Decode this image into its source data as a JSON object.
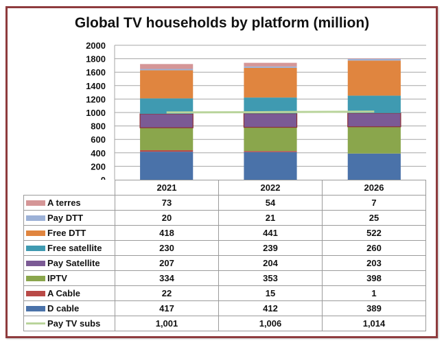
{
  "chart_data": {
    "type": "bar",
    "stacked": true,
    "title": "Global TV households by platform (million)",
    "xlabel": "",
    "ylabel": "",
    "ylim": [
      0,
      2000
    ],
    "yticks": [
      "0",
      "200",
      "400",
      "600",
      "800",
      "1000",
      "1200",
      "1400",
      "1600",
      "1800",
      "2000"
    ],
    "ytick_values": [
      0,
      200,
      400,
      600,
      800,
      1000,
      1200,
      1400,
      1600,
      1800,
      2000
    ],
    "grid": true,
    "legend": "data-table-left",
    "categories": [
      "2021",
      "2022",
      "2026"
    ],
    "series": [
      {
        "name": "D cable",
        "color": "#4a72a9",
        "values": [
          417,
          412,
          389
        ]
      },
      {
        "name": "A Cable",
        "color": "#b94a47",
        "values": [
          22,
          15,
          1
        ]
      },
      {
        "name": "IPTV",
        "color": "#8aa64c",
        "values": [
          334,
          353,
          398
        ]
      },
      {
        "name": "Pay Satellite",
        "color": "#7b5a95",
        "outline": "#8e2f35",
        "values": [
          207,
          204,
          203
        ]
      },
      {
        "name": "Free satellite",
        "color": "#3f9ab1",
        "values": [
          230,
          239,
          260
        ]
      },
      {
        "name": "Free DTT",
        "color": "#e0853f",
        "values": [
          418,
          441,
          522
        ]
      },
      {
        "name": "Pay DTT",
        "color": "#9cb1d7",
        "values": [
          20,
          21,
          25
        ]
      },
      {
        "name": "A terres",
        "color": "#d59697",
        "values": [
          73,
          54,
          7
        ]
      }
    ],
    "line_series": {
      "name": "Pay TV subs",
      "type": "line",
      "color": "#b9d49b",
      "values": [
        1001,
        1006,
        1014
      ]
    },
    "table": {
      "row_order": [
        "A terres",
        "Pay DTT",
        "Free DTT",
        "Free satellite",
        "Pay Satellite",
        "IPTV",
        "A Cable",
        "D cable",
        "Pay TV subs"
      ],
      "display_values": {
        "A terres": [
          "73",
          "54",
          "7"
        ],
        "Pay DTT": [
          "20",
          "21",
          "25"
        ],
        "Free DTT": [
          "418",
          "441",
          "522"
        ],
        "Free satellite": [
          "230",
          "239",
          "260"
        ],
        "Pay Satellite": [
          "207",
          "204",
          "203"
        ],
        "IPTV": [
          "334",
          "353",
          "398"
        ],
        "A Cable": [
          "22",
          "15",
          "1"
        ],
        "D cable": [
          "417",
          "412",
          "389"
        ],
        "Pay TV subs": [
          "1,001",
          "1,006",
          "1,014"
        ]
      }
    }
  },
  "colors": {
    "frame_border": "#8e3b3d",
    "gridline": "#a6a6a6",
    "table_border": "#9a9a9a"
  }
}
